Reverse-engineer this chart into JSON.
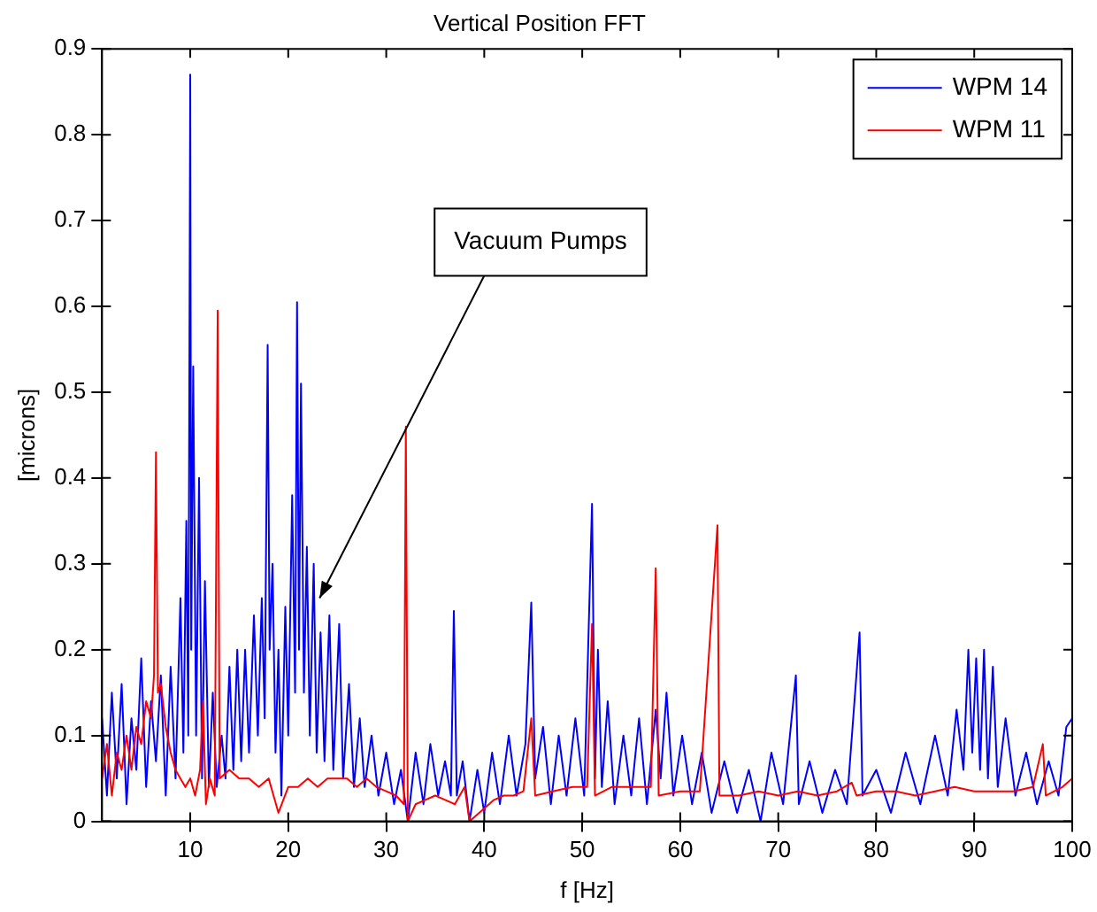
{
  "chart_data": {
    "type": "line",
    "title": "Vertical Position FFT",
    "xlabel": "f [Hz]",
    "ylabel": "[microns]",
    "xlim": [
      1,
      100
    ],
    "xticks": [
      10,
      20,
      30,
      40,
      50,
      60,
      70,
      80,
      90,
      100
    ],
    "ylim": [
      0,
      0.9
    ],
    "yticks": [
      0,
      0.1,
      0.2,
      0.3,
      0.4,
      0.5,
      0.6,
      0.7,
      0.8,
      0.9
    ],
    "grid": false,
    "legend": "top right",
    "marker": "none",
    "line_style": "solid",
    "annotations": [
      {
        "text": "Vacuum Pumps",
        "x": 23.2,
        "y": 0.26
      }
    ],
    "series": [
      {
        "name": "WPM 14",
        "color": "#0000ff",
        "x": [
          1,
          1.5,
          2,
          2.5,
          3,
          3.5,
          4,
          4.5,
          5,
          5.5,
          6,
          6.5,
          7,
          7.5,
          8,
          8.5,
          9,
          9.3,
          9.6,
          9.8,
          10,
          10.1,
          10.3,
          10.6,
          10.9,
          11.2,
          11.5,
          11.9,
          12.3,
          12.7,
          13.2,
          13.6,
          14,
          14.4,
          14.8,
          15.2,
          15.6,
          16,
          16.5,
          16.9,
          17.3,
          17.6,
          17.9,
          18.1,
          18.4,
          18.7,
          19,
          19.3,
          19.7,
          20,
          20.4,
          20.7,
          20.9,
          21.1,
          21.3,
          21.6,
          21.9,
          22.2,
          22.6,
          22.9,
          23.3,
          23.7,
          24.2,
          24.6,
          25.2,
          25.6,
          26.2,
          26.7,
          27.3,
          27.8,
          28.5,
          29.2,
          30,
          30.8,
          31.5,
          32.2,
          33,
          33.8,
          34.5,
          35.3,
          36,
          36.6,
          36.9,
          37.2,
          37.8,
          38.5,
          39.3,
          40,
          40.8,
          41.6,
          42.5,
          43.3,
          44.2,
          44.8,
          45.2,
          46,
          46.8,
          47.6,
          48.4,
          49.3,
          50.2,
          51,
          51.3,
          51.6,
          52,
          52.6,
          53.3,
          54.2,
          55,
          55.8,
          56.6,
          57.5,
          58,
          58.6,
          59.3,
          60.2,
          61.2,
          62.2,
          63.2,
          64.5,
          65.8,
          67,
          68.2,
          69.3,
          70.5,
          71.8,
          72.1,
          73.2,
          74.5,
          75.8,
          77,
          78.3,
          78.6,
          80,
          81.5,
          83,
          84.5,
          86,
          87.3,
          88.2,
          88.9,
          89.4,
          89.8,
          90.2,
          90.6,
          91,
          91.4,
          91.9,
          92.4,
          93.2,
          94.2,
          95.3,
          96.4,
          97.6,
          98.6,
          99.4,
          100
        ],
        "values": [
          0.12,
          0.03,
          0.15,
          0.05,
          0.16,
          0.02,
          0.12,
          0.06,
          0.19,
          0.04,
          0.14,
          0.07,
          0.17,
          0.03,
          0.18,
          0.05,
          0.26,
          0.08,
          0.35,
          0.1,
          0.87,
          0.2,
          0.53,
          0.1,
          0.4,
          0.05,
          0.28,
          0.04,
          0.15,
          0.04,
          0.1,
          0.05,
          0.18,
          0.06,
          0.2,
          0.07,
          0.2,
          0.08,
          0.24,
          0.1,
          0.26,
          0.12,
          0.555,
          0.2,
          0.3,
          0.08,
          0.2,
          0.03,
          0.25,
          0.1,
          0.38,
          0.15,
          0.605,
          0.2,
          0.51,
          0.15,
          0.32,
          0.1,
          0.3,
          0.08,
          0.22,
          0.07,
          0.24,
          0.06,
          0.23,
          0.05,
          0.16,
          0.04,
          0.12,
          0.04,
          0.1,
          0.03,
          0.08,
          0.02,
          0.06,
          0,
          0.08,
          0.02,
          0.09,
          0.03,
          0.07,
          0.03,
          0.245,
          0.03,
          0.07,
          0,
          0.06,
          0.01,
          0.08,
          0.02,
          0.1,
          0.03,
          0.09,
          0.255,
          0.05,
          0.11,
          0.02,
          0.1,
          0.03,
          0.12,
          0.03,
          0.37,
          0.05,
          0.2,
          0.04,
          0.14,
          0.02,
          0.1,
          0.03,
          0.12,
          0.02,
          0.13,
          0.05,
          0.15,
          0.03,
          0.1,
          0.02,
          0.08,
          0.01,
          0.07,
          0.01,
          0.06,
          0,
          0.08,
          0.02,
          0.17,
          0.02,
          0.07,
          0.01,
          0.06,
          0.02,
          0.22,
          0.03,
          0.06,
          0.01,
          0.08,
          0.02,
          0.1,
          0.03,
          0.13,
          0.06,
          0.2,
          0.08,
          0.19,
          0.06,
          0.2,
          0.05,
          0.18,
          0.04,
          0.12,
          0.03,
          0.08,
          0.02,
          0.07,
          0.03,
          0.11,
          0.12
        ]
      },
      {
        "name": "WPM 11",
        "color": "#ff0000",
        "x": [
          1,
          1.5,
          2,
          2.5,
          3,
          3.5,
          4,
          4.5,
          5,
          5.5,
          6,
          6.3,
          6.5,
          6.7,
          7,
          7.5,
          8,
          8.5,
          9,
          9.5,
          10,
          10.5,
          11,
          11.3,
          11.6,
          12,
          12.5,
          12.8,
          13,
          14,
          15,
          16,
          17,
          18,
          18.5,
          19,
          19.5,
          20,
          21,
          22,
          23,
          24,
          25,
          26,
          27,
          28,
          29,
          30,
          31,
          31.8,
          32,
          32.2,
          33,
          34,
          35,
          36,
          37,
          38,
          38.5,
          39,
          40,
          41,
          42,
          43,
          44,
          44.8,
          45.2,
          47,
          49,
          50.5,
          51,
          51.3,
          53,
          55,
          57,
          57.5,
          57.8,
          60,
          62,
          63.8,
          64,
          66,
          68,
          70,
          72,
          74,
          76,
          77.5,
          78,
          80,
          82,
          84,
          86,
          88,
          90,
          92,
          94,
          96,
          97,
          97.3,
          99,
          100
        ],
        "values": [
          0.05,
          0.09,
          0.03,
          0.08,
          0.06,
          0.1,
          0.06,
          0.11,
          0.09,
          0.14,
          0.12,
          0.17,
          0.43,
          0.15,
          0.16,
          0.11,
          0.08,
          0.06,
          0.05,
          0.04,
          0.05,
          0.03,
          0.06,
          0.14,
          0.02,
          0.05,
          0.03,
          0.595,
          0.05,
          0.06,
          0.05,
          0.05,
          0.04,
          0.05,
          0.03,
          0.01,
          0.025,
          0.04,
          0.04,
          0.05,
          0.04,
          0.05,
          0.05,
          0.05,
          0.04,
          0.05,
          0.04,
          0.035,
          0.03,
          0.02,
          0.46,
          0,
          0.02,
          0.025,
          0.03,
          0.025,
          0.02,
          0.04,
          0,
          0.005,
          0.015,
          0.025,
          0.03,
          0.03,
          0.035,
          0.12,
          0.03,
          0.035,
          0.04,
          0.04,
          0.23,
          0.03,
          0.04,
          0.04,
          0.04,
          0.295,
          0.03,
          0.035,
          0.035,
          0.345,
          0.03,
          0.03,
          0.035,
          0.03,
          0.035,
          0.03,
          0.035,
          0.045,
          0.03,
          0.035,
          0.035,
          0.03,
          0.035,
          0.04,
          0.035,
          0.035,
          0.035,
          0.04,
          0.09,
          0.03,
          0.04,
          0.05
        ]
      }
    ]
  }
}
